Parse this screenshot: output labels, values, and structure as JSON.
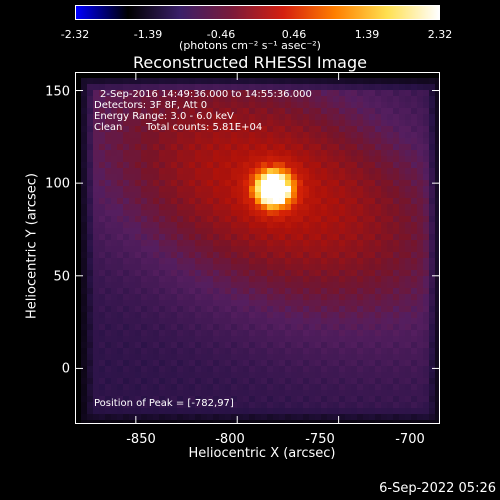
{
  "colorbar": {
    "ticks": [
      "-2.32",
      "-1.39",
      "-0.46",
      "0.46",
      "1.39",
      "2.32"
    ],
    "unit_label": "(photons cm⁻² s⁻¹ asec⁻²)",
    "colors": [
      "#0000ff",
      "#000000",
      "#3a1f68",
      "#7a1a3a",
      "#d41f0f",
      "#ff7f00",
      "#ffe050",
      "#ffffff"
    ]
  },
  "chart_data": {
    "type": "heatmap",
    "title": "Reconstructed RHESSI Image",
    "xlabel": "Heliocentric X (arcsec)",
    "ylabel": "Heliocentric Y (arcsec)",
    "xlim": [
      -880,
      -700
    ],
    "ylim": [
      -30,
      160
    ],
    "x_ticks": [
      "-850",
      "-800",
      "-750",
      "-700"
    ],
    "x_tick_values": [
      -850,
      -800,
      -750,
      -700
    ],
    "y_ticks": [
      "0",
      "50",
      "100",
      "150"
    ],
    "y_tick_values": [
      0,
      50,
      100,
      150
    ],
    "peak": {
      "x": -782,
      "y": 97,
      "value": 2.32
    },
    "value_range": [
      -2.32,
      2.32
    ],
    "annotations": {
      "time_range": "2-Sep-2016 14:49:36.000 to 14:55:36.000",
      "detectors": "Detectors: 3F 8F, Att 0",
      "energy": "Energy Range: 3.0 - 6.0 keV",
      "clean": "Clean",
      "counts": "Total counts: 5.81E+04",
      "peak_label": "Position of Peak = [-782,97]"
    }
  },
  "footer": {
    "date": "6-Sep-2022 05:26"
  }
}
